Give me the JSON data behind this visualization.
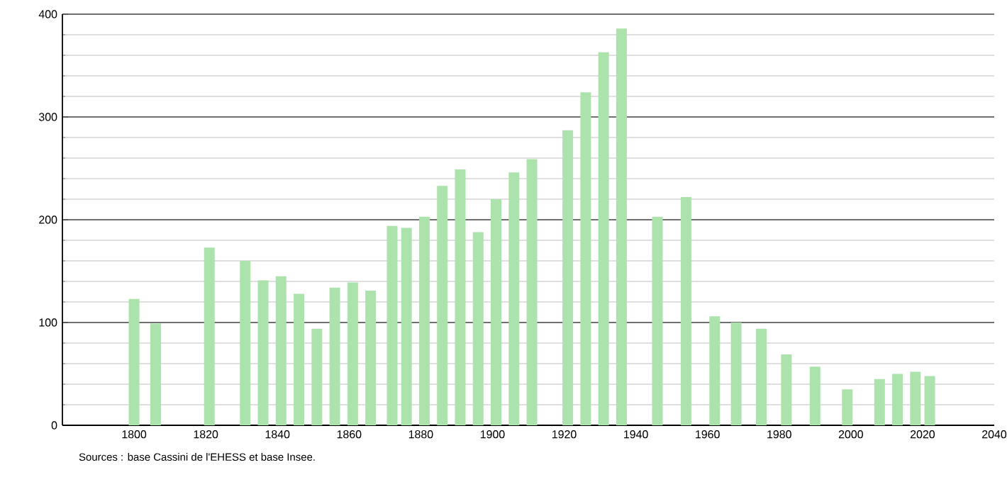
{
  "chart_data": {
    "type": "bar",
    "x": [
      1800,
      1806,
      1821,
      1831,
      1836,
      1841,
      1846,
      1851,
      1856,
      1861,
      1866,
      1872,
      1876,
      1881,
      1886,
      1891,
      1896,
      1901,
      1906,
      1911,
      1921,
      1926,
      1931,
      1936,
      1946,
      1954,
      1962,
      1968,
      1975,
      1982,
      1990,
      1999,
      2008,
      2013,
      2018,
      2022
    ],
    "values": [
      123,
      99,
      173,
      160,
      141,
      145,
      128,
      94,
      134,
      139,
      131,
      194,
      192,
      203,
      233,
      249,
      188,
      220,
      246,
      259,
      287,
      324,
      363,
      386,
      203,
      222,
      106,
      100,
      94,
      69,
      57,
      35,
      45,
      50,
      52,
      48
    ],
    "color": "#ace3ac",
    "xlim": [
      1780,
      2040
    ],
    "xticks": [
      1800,
      1820,
      1840,
      1860,
      1880,
      1900,
      1920,
      1940,
      1960,
      1980,
      2000,
      2020,
      2040
    ],
    "ylim": [
      0,
      400
    ],
    "yticks": [
      0,
      100,
      200,
      300,
      400
    ],
    "grid": "y",
    "annotations": [
      "Sources : base Cassini de l'EHESS et base Insee."
    ]
  }
}
